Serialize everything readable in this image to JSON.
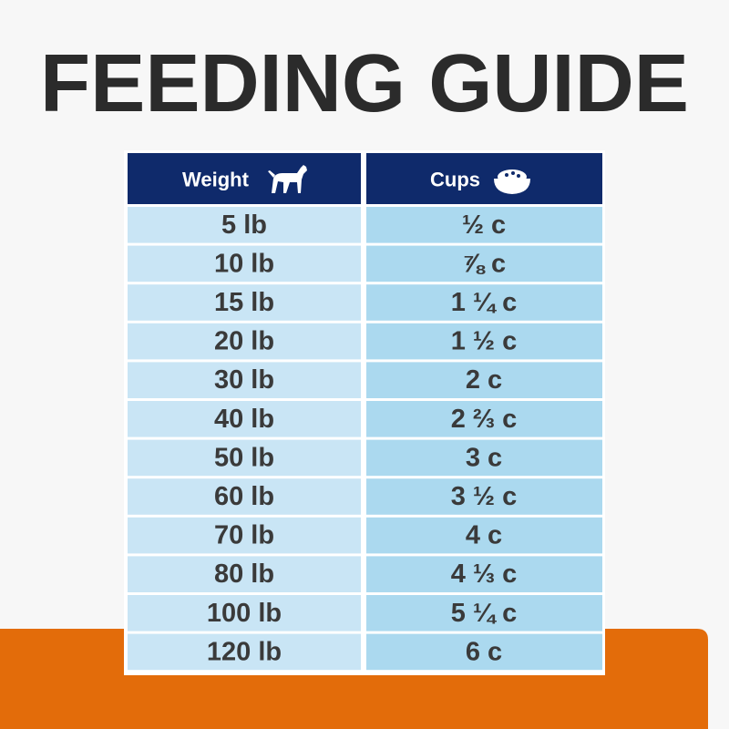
{
  "header": {
    "title": "FEEDING GUIDE"
  },
  "table": {
    "columns": [
      "Weight",
      "Cups"
    ],
    "rows": [
      [
        "5 lb",
        "½ c"
      ],
      [
        "10 lb",
        "⅞ c"
      ],
      [
        "15 lb",
        "1 ¼ c"
      ],
      [
        "20 lb",
        "1 ½ c"
      ],
      [
        "30 lb",
        "2 c"
      ],
      [
        "40 lb",
        "2 ⅔ c"
      ],
      [
        "50 lb",
        "3 c"
      ],
      [
        "60 lb",
        "3 ½ c"
      ],
      [
        "70 lb",
        "4 c"
      ],
      [
        "80 lb",
        "4 ⅓ c"
      ],
      [
        "100 lb",
        "5 ¼ c"
      ],
      [
        "120 lb",
        "6 c"
      ]
    ]
  }
}
